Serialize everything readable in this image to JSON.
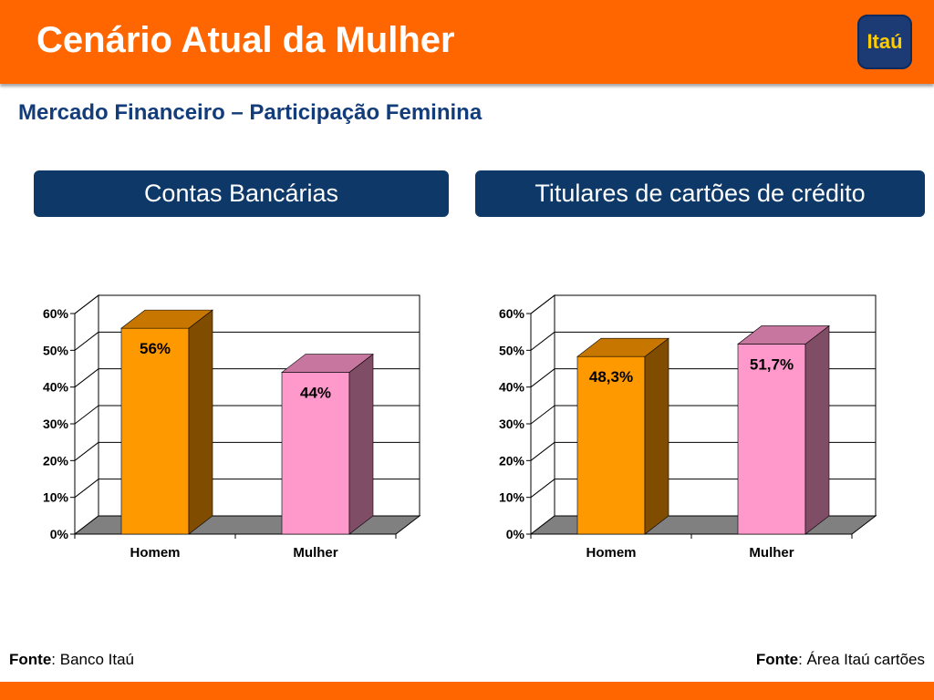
{
  "header": {
    "title": "Cenário Atual da Mulher",
    "logo_text": "Itaú"
  },
  "subtitle": "Mercado Financeiro – Participação Feminina",
  "panels": [
    {
      "title": "Contas Bancárias"
    },
    {
      "title": "Titulares de cartões de crédito"
    }
  ],
  "colors": {
    "brand_orange": "#ff6600",
    "navy": "#0d3867",
    "homem_bar": "#ff9900",
    "mulher_bar": "#ff99cc"
  },
  "chart_data": [
    {
      "type": "bar",
      "categories": [
        "Homem",
        "Mulher"
      ],
      "values": [
        56,
        44
      ],
      "value_labels": [
        "56%",
        "44%"
      ],
      "bar_colors": [
        "#ff9900",
        "#ff99cc"
      ],
      "ylim": [
        0,
        60
      ],
      "yticks": [
        "0%",
        "10%",
        "20%",
        "30%",
        "40%",
        "50%",
        "60%"
      ],
      "grid": true,
      "three_d": true
    },
    {
      "type": "bar",
      "categories": [
        "Homem",
        "Mulher"
      ],
      "values": [
        48.3,
        51.7
      ],
      "value_labels": [
        "48,3%",
        "51,7%"
      ],
      "bar_colors": [
        "#ff9900",
        "#ff99cc"
      ],
      "ylim": [
        0,
        60
      ],
      "yticks": [
        "0%",
        "10%",
        "20%",
        "30%",
        "40%",
        "50%",
        "60%"
      ],
      "grid": true,
      "three_d": true
    }
  ],
  "footnotes": [
    {
      "label": "Fonte",
      "text": ": Banco Itaú"
    },
    {
      "label": "Fonte",
      "text": ": Área Itaú cartões"
    }
  ]
}
